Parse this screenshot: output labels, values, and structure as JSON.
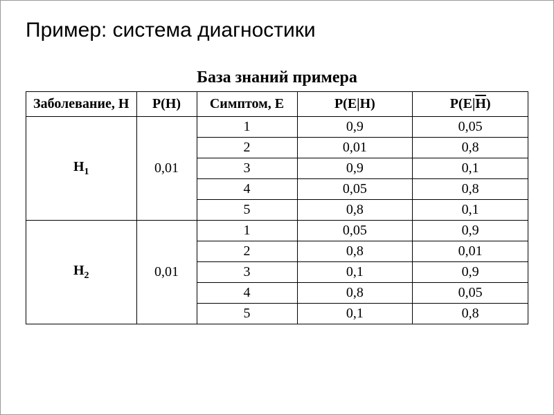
{
  "slide": {
    "title": "Пример: система диагностики"
  },
  "table": {
    "title": "База знаний примера",
    "headers": {
      "disease": "Заболевание, H",
      "ph": "P(H)",
      "symptom": "Симптом, E",
      "peh": "P(E|H)",
      "pehbar_prefix": "P(E|",
      "pehbar_over": "H",
      "pehbar_suffix": ")"
    },
    "groups": [
      {
        "hypothesis_prefix": "H",
        "hypothesis_sub": "1",
        "ph": "0,01",
        "rows": [
          {
            "symptom": "1",
            "peh": "0,9",
            "pehbar": "0,05"
          },
          {
            "symptom": "2",
            "peh": "0,01",
            "pehbar": "0,8"
          },
          {
            "symptom": "3",
            "peh": "0,9",
            "pehbar": "0,1"
          },
          {
            "symptom": "4",
            "peh": "0,05",
            "pehbar": "0,8"
          },
          {
            "symptom": "5",
            "peh": "0,8",
            "pehbar": "0,1"
          }
        ]
      },
      {
        "hypothesis_prefix": "H",
        "hypothesis_sub": "2",
        "ph": "0,01",
        "rows": [
          {
            "symptom": "1",
            "peh": "0,05",
            "pehbar": "0,9"
          },
          {
            "symptom": "2",
            "peh": "0,8",
            "pehbar": "0,01"
          },
          {
            "symptom": "3",
            "peh": "0,1",
            "pehbar": "0,9"
          },
          {
            "symptom": "4",
            "peh": "0,8",
            "pehbar": "0,05"
          },
          {
            "symptom": "5",
            "peh": "0,1",
            "pehbar": "0,8"
          }
        ]
      }
    ]
  },
  "style": {
    "background_color": "#ffffff",
    "border_color": "#000000",
    "title_fontsize": 30,
    "table_title_fontsize": 24,
    "cell_fontsize": 20
  }
}
